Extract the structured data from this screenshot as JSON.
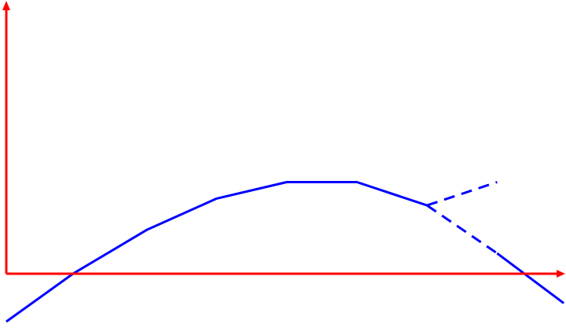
{
  "colors": {
    "axes": "#ff0000",
    "curve": "#0000ff",
    "background": "#ffffff"
  },
  "axes": {
    "x_label": "",
    "y_label": "",
    "arrowheads": true
  },
  "chart_data": {
    "type": "line",
    "title": "",
    "xlabel": "",
    "ylabel": "",
    "grid": false,
    "xlim": [
      0,
      7.96
    ],
    "ylim": [
      -0.77,
      3.98
    ],
    "series": [
      {
        "style": "solid",
        "points": [
          [
            0,
            -0.7
          ],
          [
            0.95,
            0
          ],
          [
            2,
            0.64
          ],
          [
            3,
            1.1
          ],
          [
            4,
            1.34
          ],
          [
            5,
            1.34
          ],
          [
            6,
            1.0
          ]
        ]
      },
      {
        "style": "dashed",
        "points": [
          [
            6,
            1.0
          ],
          [
            7,
            1.34
          ]
        ]
      },
      {
        "style": "dashed",
        "points": [
          [
            6,
            1.0
          ],
          [
            7,
            0.3
          ]
        ]
      },
      {
        "style": "solid",
        "points": [
          [
            7,
            0.3
          ],
          [
            7.95,
            -0.43
          ]
        ]
      }
    ]
  }
}
